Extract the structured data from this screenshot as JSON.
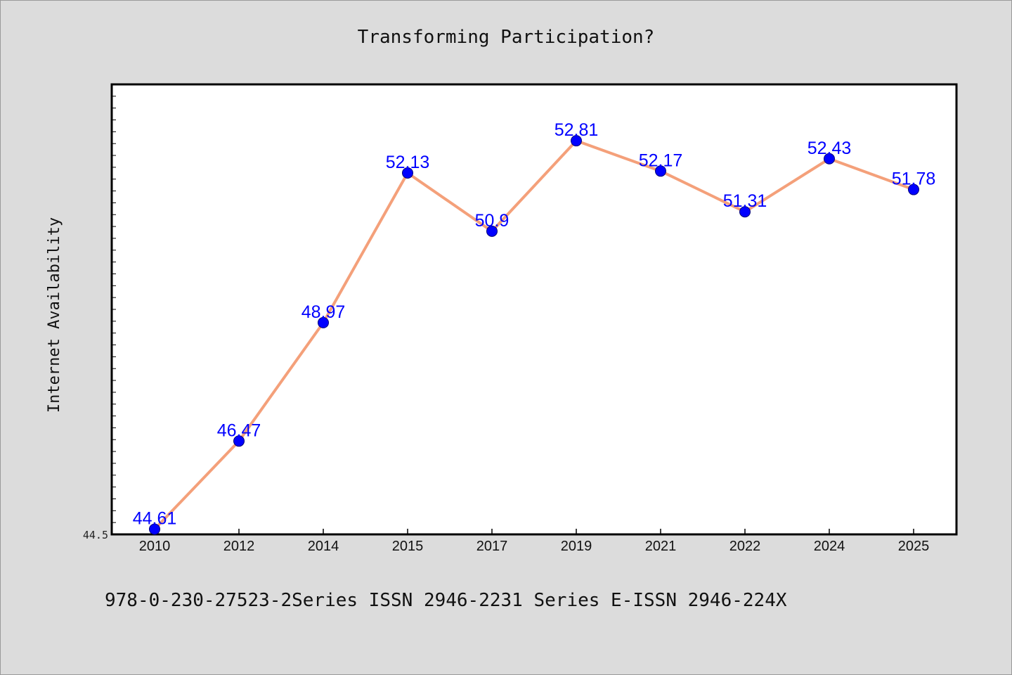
{
  "chart_data": {
    "type": "line",
    "title": "Transforming Participation?",
    "xlabel": "",
    "ylabel": "Internet Availability",
    "categories": [
      "2010",
      "2012",
      "2014",
      "2015",
      "2017",
      "2019",
      "2021",
      "2022",
      "2024",
      "2025"
    ],
    "series": [
      {
        "values": [
          44.61,
          46.47,
          48.97,
          52.13,
          50.9,
          52.81,
          52.17,
          51.31,
          52.43,
          51.78
        ],
        "line_color": "#f4a07a",
        "marker_color": "#0000ff",
        "label_color": "#0000ff"
      }
    ],
    "y_tick_labels": [
      "44.5"
    ],
    "ylim": [
      44.5,
      54.0
    ],
    "grid": false,
    "legend": "none",
    "footer": "978-0-230-27523-2Series ISSN 2946-2231 Series E-ISSN 2946-224X"
  }
}
